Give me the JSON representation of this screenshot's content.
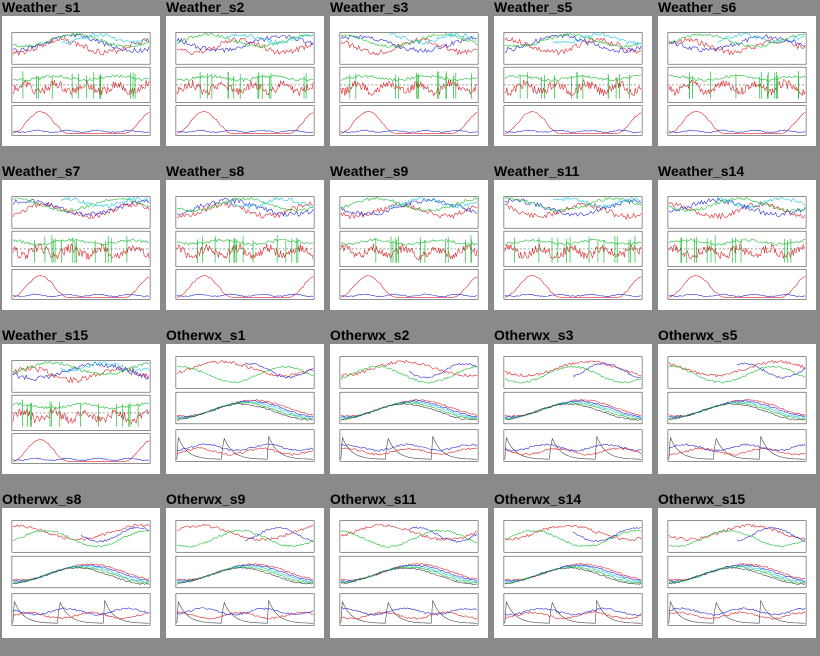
{
  "page": {
    "background": "#8a8a8a"
  },
  "colors": {
    "red": "#e0262b",
    "blue": "#2b2bd8",
    "green": "#1bbf33",
    "cyan": "#18c8e8",
    "magenta": "#e000e0",
    "frame": "#444444"
  },
  "tiles": [
    {
      "title": "Weather_s1",
      "kind": "weather"
    },
    {
      "title": "Weather_s2",
      "kind": "weather"
    },
    {
      "title": "Weather_s3",
      "kind": "weather"
    },
    {
      "title": "Weather_s5",
      "kind": "weather"
    },
    {
      "title": "Weather_s6",
      "kind": "weather"
    },
    {
      "title": "Weather_s7",
      "kind": "weather"
    },
    {
      "title": "Weather_s8",
      "kind": "weather"
    },
    {
      "title": "Weather_s9",
      "kind": "weather"
    },
    {
      "title": "Weather_s11",
      "kind": "weather"
    },
    {
      "title": "Weather_s14",
      "kind": "weather"
    },
    {
      "title": "Weather_s15",
      "kind": "weather"
    },
    {
      "title": "Otherwx_s1",
      "kind": "otherwx"
    },
    {
      "title": "Otherwx_s2",
      "kind": "otherwx"
    },
    {
      "title": "Otherwx_s3",
      "kind": "otherwx"
    },
    {
      "title": "Otherwx_s5",
      "kind": "otherwx"
    },
    {
      "title": "Otherwx_s8",
      "kind": "otherwx"
    },
    {
      "title": "Otherwx_s9",
      "kind": "otherwx"
    },
    {
      "title": "Otherwx_s11",
      "kind": "otherwx"
    },
    {
      "title": "Otherwx_s14",
      "kind": "otherwx"
    },
    {
      "title": "Otherwx_s15",
      "kind": "otherwx"
    }
  ]
}
